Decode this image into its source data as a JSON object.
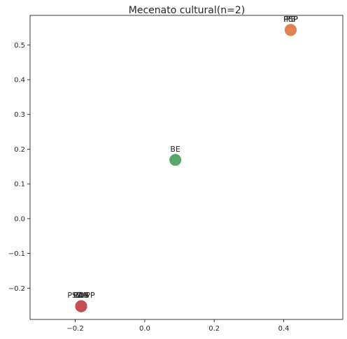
{
  "chart_data": {
    "type": "scatter",
    "title": "Mecenato cultural(n=2)",
    "xlabel": "",
    "ylabel": "",
    "xlim": [
      -0.33,
      0.57
    ],
    "ylim": [
      -0.29,
      0.585
    ],
    "xticks": [
      -0.2,
      0.0,
      0.2,
      0.4
    ],
    "xtick_labels": [
      "−0.2",
      "0.0",
      "0.2",
      "0.4"
    ],
    "yticks": [
      -0.2,
      -0.1,
      0.0,
      0.1,
      0.2,
      0.3,
      0.4,
      0.5
    ],
    "ytick_labels": [
      "−0.2",
      "−0.1",
      "0.0",
      "0.1",
      "0.2",
      "0.3",
      "0.4",
      "0.5"
    ],
    "grid": false,
    "points": [
      {
        "label": "PSD-PP",
        "x": -0.183,
        "y": -0.252,
        "color": "#4c72b0"
      },
      {
        "label": "CDS",
        "x": -0.183,
        "y": -0.252,
        "color": "#8172b2"
      },
      {
        "label": "L",
        "x": -0.183,
        "y": -0.252,
        "color": "#937860"
      },
      {
        "label": "PAN",
        "x": -0.183,
        "y": -0.252,
        "color": "#da8bc3"
      },
      {
        "label": "CH",
        "x": -0.183,
        "y": -0.252,
        "color": "#c44e52"
      },
      {
        "label": "PSP",
        "x": 0.42,
        "y": 0.543,
        "color": "#dd8452"
      },
      {
        "label": "PS",
        "x": 0.42,
        "y": 0.543,
        "color": "#dd8452"
      },
      {
        "label": "PCP",
        "x": 0.42,
        "y": 0.543,
        "color": "#dd8452"
      },
      {
        "label": "BE",
        "x": 0.088,
        "y": 0.169,
        "color": "#55a868"
      }
    ]
  }
}
